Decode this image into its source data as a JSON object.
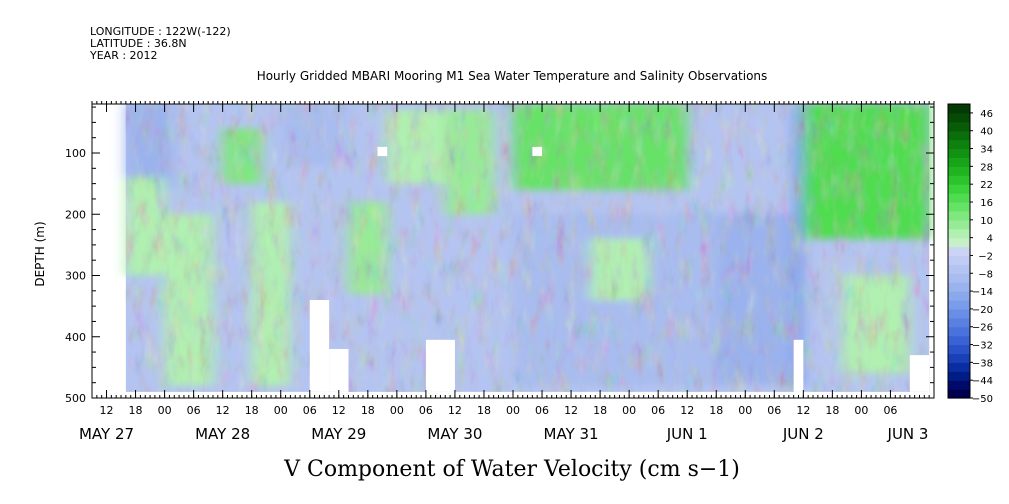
{
  "chart_data": {
    "type": "heatmap",
    "header_lines": [
      "LONGITUDE : 122W(-122)",
      "LATITUDE : 36.8N",
      "YEAR : 2012"
    ],
    "title": "Hourly Gridded MBARI Mooring M1 Sea Water Temperature and Salinity Observations",
    "subtitle": "V Component of Water Velocity (cm s−1)",
    "ylabel": "DEPTH (m)",
    "ylim": [
      500,
      20
    ],
    "y_ticks": [
      100,
      200,
      300,
      400,
      500
    ],
    "y_tick_labels": [
      "100",
      "200",
      "300",
      "400",
      "500"
    ],
    "x_hour_labels": [
      "12",
      "18",
      "00",
      "06",
      "12",
      "18",
      "00",
      "06",
      "12",
      "18",
      "00",
      "06",
      "12",
      "18",
      "00",
      "06",
      "12",
      "18",
      "00",
      "06",
      "12",
      "18",
      "00",
      "06",
      "12",
      "18",
      "00",
      "06"
    ],
    "x_date_labels": [
      "MAY 27",
      "MAY 28",
      "MAY 29",
      "MAY 30",
      "MAY 31",
      "JUN  1",
      "JUN  2",
      "JUN  3"
    ],
    "colorbar_labels": [
      "46",
      "40",
      "34",
      "28",
      "22",
      "16",
      "10",
      "4",
      "-2",
      "-8",
      "-14",
      "-20",
      "-26",
      "-32",
      "-38",
      "-44",
      "-50"
    ],
    "colorbar_levels": [
      -50,
      -47,
      -44,
      -41,
      -38,
      -35,
      -32,
      -29,
      -26,
      -23,
      -20,
      -17,
      -14,
      -11,
      -8,
      -5,
      -2,
      1,
      4,
      7,
      10,
      13,
      16,
      19,
      22,
      25,
      28,
      31,
      34,
      37,
      40,
      43,
      46,
      49
    ],
    "colorbar_colors": [
      "#00004e",
      "#000a6a",
      "#001c86",
      "#0a2ea2",
      "#1a40b8",
      "#2a52c8",
      "#3a62d4",
      "#4a72dc",
      "#5a80e2",
      "#6a8ee6",
      "#7a9cea",
      "#8aa8ec",
      "#9ab2ee",
      "#a8bcf0",
      "#b4c4f2",
      "#c0ccf4",
      "#ccd4f6",
      "#c8f0c8",
      "#b0f0b0",
      "#96ec96",
      "#7ee87e",
      "#66e266",
      "#50dc50",
      "#3cd23c",
      "#2cc42c",
      "#20b420",
      "#18a418",
      "#129212",
      "#0e800e",
      "#0a6e0a",
      "#085c08",
      "#064a06",
      "#043a04"
    ],
    "time_range_hours": [
      "2012-05-27 09:00",
      "2012-06-03 15:00"
    ],
    "data_time_range": [
      "2012-05-27 16:00",
      "2012-06-03 14:00"
    ],
    "data_depth_range": [
      20,
      490
    ],
    "v_field_anomalies_cm_s": [
      {
        "start": "2012-05-27 16:00",
        "end": "2012-05-28 02:00",
        "depth": [
          20,
          160
        ],
        "v": -14
      },
      {
        "start": "2012-05-27 16:00",
        "end": "2012-05-28 00:00",
        "depth": [
          140,
          300
        ],
        "v": 6
      },
      {
        "start": "2012-05-28 00:00",
        "end": "2012-05-28 10:00",
        "depth": [
          200,
          480
        ],
        "v": 4
      },
      {
        "start": "2012-05-28 12:00",
        "end": "2012-05-28 20:00",
        "depth": [
          60,
          150
        ],
        "v": 10
      },
      {
        "start": "2012-05-28 18:00",
        "end": "2012-05-29 02:00",
        "depth": [
          180,
          480
        ],
        "v": 5
      },
      {
        "start": "2012-05-29 00:00",
        "end": "2012-05-29 14:00",
        "depth": [
          20,
          120
        ],
        "v": -10
      },
      {
        "start": "2012-05-29 14:00",
        "end": "2012-05-29 22:00",
        "depth": [
          180,
          330
        ],
        "v": 7
      },
      {
        "start": "2012-05-29 22:00",
        "end": "2012-05-30 10:00",
        "depth": [
          30,
          150
        ],
        "v": 6
      },
      {
        "start": "2012-05-30 10:00",
        "end": "2012-05-30 20:00",
        "depth": [
          30,
          200
        ],
        "v": 8
      },
      {
        "start": "2012-05-30 04:00",
        "end": "2012-05-30 14:00",
        "depth": [
          300,
          480
        ],
        "v": -8
      },
      {
        "start": "2012-05-31 00:00",
        "end": "2012-06-01 12:00",
        "depth": [
          20,
          160
        ],
        "v": 14
      },
      {
        "start": "2012-05-31 00:00",
        "end": "2012-06-01 18:00",
        "depth": [
          200,
          480
        ],
        "v": -10
      },
      {
        "start": "2012-05-31 16:00",
        "end": "2012-06-01 04:00",
        "depth": [
          240,
          340
        ],
        "v": 6
      },
      {
        "start": "2012-06-01 18:00",
        "end": "2012-06-02 10:00",
        "depth": [
          200,
          480
        ],
        "v": -12
      },
      {
        "start": "2012-06-02 10:00",
        "end": "2012-06-03 14:00",
        "depth": [
          20,
          240
        ],
        "v": 16
      },
      {
        "start": "2012-06-02 20:00",
        "end": "2012-06-03 10:00",
        "depth": [
          300,
          460
        ],
        "v": 6
      },
      {
        "start": "2012-06-02 10:00",
        "end": "2012-06-02 12:00",
        "depth": [
          20,
          480
        ],
        "v": -18
      }
    ],
    "missing_data": [
      {
        "start": "2012-05-29 06:00",
        "end": "2012-05-29 10:00",
        "depth": [
          340,
          490
        ]
      },
      {
        "start": "2012-05-29 10:00",
        "end": "2012-05-29 14:00",
        "depth": [
          420,
          490
        ]
      },
      {
        "start": "2012-05-30 06:00",
        "end": "2012-05-30 12:00",
        "depth": [
          405,
          490
        ]
      },
      {
        "start": "2012-05-29 20:00",
        "end": "2012-05-29 22:00",
        "depth": [
          90,
          105
        ]
      },
      {
        "start": "2012-05-31 04:00",
        "end": "2012-05-31 06:00",
        "depth": [
          90,
          105
        ]
      },
      {
        "start": "2012-06-02 10:00",
        "end": "2012-06-02 12:00",
        "depth": [
          405,
          490
        ]
      },
      {
        "start": "2012-06-03 10:00",
        "end": "2012-06-03 14:00",
        "depth": [
          430,
          490
        ]
      }
    ]
  }
}
